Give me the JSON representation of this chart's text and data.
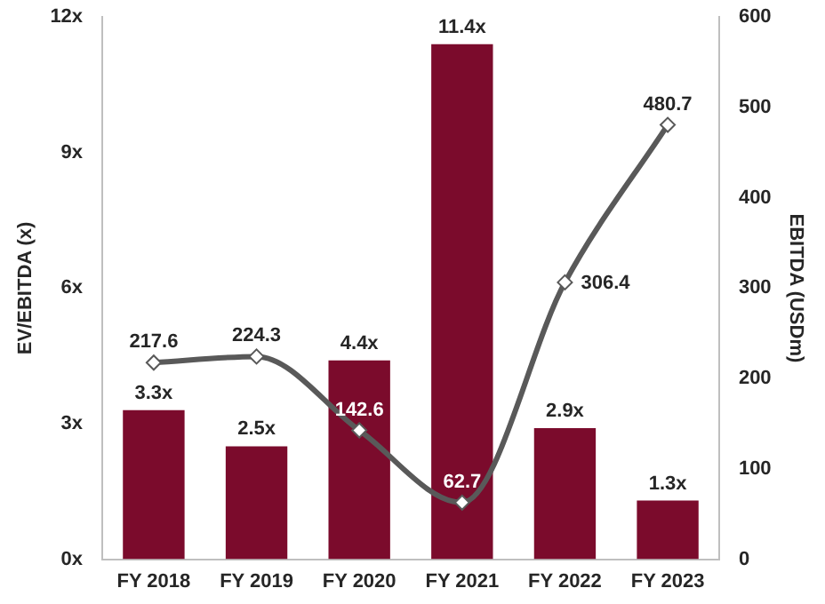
{
  "chart_data": {
    "type": "bar",
    "categories": [
      "FY 2018",
      "FY 2019",
      "FY 2020",
      "FY 2021",
      "FY 2022",
      "FY 2023"
    ],
    "ylabel": "EV/EBITDA (x)",
    "y2label": "EBITDA (USDm)",
    "ylim": [
      0,
      12
    ],
    "yticks": [
      {
        "value": 0,
        "label": "0x"
      },
      {
        "value": 3,
        "label": "3x"
      },
      {
        "value": 6,
        "label": "6x"
      },
      {
        "value": 9,
        "label": "9x"
      },
      {
        "value": 12,
        "label": "12x"
      }
    ],
    "y2lim": [
      0,
      600
    ],
    "y2ticks": [
      0,
      100,
      200,
      300,
      400,
      500,
      600
    ],
    "grid": false,
    "legend": false,
    "series": [
      {
        "color": "#7b0b2c",
        "values": [
          3.3,
          2.5,
          4.4,
          11.4,
          2.9,
          1.3
        ],
        "value_labels": [
          "3.3x",
          "2.5x",
          "4.4x",
          "11.4x",
          "2.9x",
          "1.3x"
        ]
      },
      {
        "type": "line",
        "axis": "y2",
        "color": "#595959",
        "marker": "diamond",
        "line_style": "solid",
        "data_labels": true,
        "values": [
          217.6,
          224.3,
          142.6,
          62.7,
          306.4,
          480.7
        ]
      }
    ]
  }
}
